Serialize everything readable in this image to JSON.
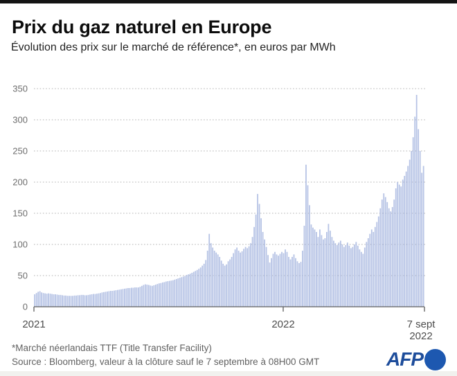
{
  "header": {
    "title": "Prix du gaz naturel en Europe",
    "subtitle": "Évolution des prix sur le marché de référence*, en euros par MWh"
  },
  "chart_data": {
    "type": "area",
    "title": "Prix du gaz naturel en Europe",
    "ylabel": "euros par MWh",
    "xlabel": "",
    "ylim": [
      0,
      350
    ],
    "grid": "horizontal-dotted",
    "legend": "none",
    "y_ticks": [
      0,
      50,
      100,
      150,
      200,
      250,
      300,
      350
    ],
    "x_ticks": [
      "2021",
      "2022",
      "7 sept\n2022"
    ],
    "x_range_note": "janvier 2021 à 7 septembre 2022",
    "fill_color": "#b7c3e6",
    "values": [
      20,
      22,
      24,
      25,
      23,
      22,
      21.5,
      21,
      21.5,
      21,
      20.5,
      20,
      20,
      19.5,
      19,
      19,
      18.5,
      18,
      18,
      17.5,
      17.5,
      17.5,
      17.5,
      18,
      18,
      18.5,
      18.5,
      19,
      19,
      18.5,
      18.5,
      19,
      19.5,
      20,
      20.5,
      20.5,
      21,
      21.5,
      22,
      23,
      23.5,
      24,
      24.5,
      25,
      25.5,
      25.5,
      26,
      26.5,
      27,
      27.5,
      28,
      28.5,
      29,
      29.5,
      30,
      30,
      30.5,
      30.5,
      31,
      31,
      31,
      32,
      33.5,
      35,
      36,
      35.5,
      35,
      34,
      33.5,
      34.5,
      35.5,
      36.5,
      37.5,
      38,
      39,
      39.5,
      40.5,
      41,
      41.5,
      42,
      42.5,
      43.5,
      44.5,
      45.5,
      46.5,
      47.5,
      48.5,
      49.5,
      51,
      52,
      53,
      54.5,
      56,
      57.5,
      59,
      61,
      63,
      66,
      69,
      75,
      90,
      117,
      102,
      95,
      90,
      87,
      84,
      80,
      74,
      69,
      66,
      68,
      73,
      76,
      80,
      86,
      92,
      95,
      90,
      87,
      89,
      93,
      96,
      94,
      97,
      102,
      112,
      128,
      148,
      181,
      165,
      142,
      120,
      108,
      96,
      83,
      71,
      78,
      85,
      88,
      84,
      82,
      85,
      88,
      86,
      92,
      88,
      80,
      76,
      80,
      84,
      78,
      73,
      70,
      72,
      90,
      130,
      228,
      195,
      163,
      132,
      127,
      124,
      120,
      112,
      124,
      115,
      108,
      110,
      120,
      133,
      122,
      112,
      106,
      102,
      99,
      103,
      106,
      100,
      96,
      99,
      103,
      98,
      94,
      96,
      100,
      104,
      98,
      92,
      88,
      85,
      95,
      104,
      110,
      117,
      124,
      120,
      128,
      136,
      145,
      158,
      172,
      182,
      176,
      168,
      158,
      153,
      160,
      172,
      190,
      200,
      196,
      193,
      204,
      210,
      217,
      226,
      236,
      250,
      272,
      305,
      340,
      285,
      250,
      215,
      226
    ]
  },
  "footer": {
    "footnote": "*Marché néerlandais TTF (Title Transfer Facility)",
    "source": "Source : Bloomberg, valeur à la clôture sauf le 7 septembre à 08H00 GMT",
    "logo_text": "AFP"
  }
}
